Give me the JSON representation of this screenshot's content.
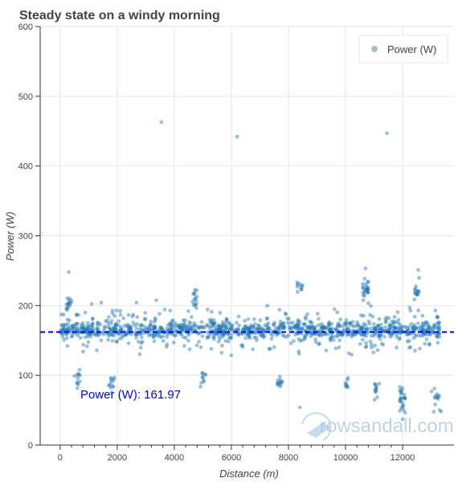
{
  "chart_data": {
    "type": "scatter",
    "title": "Steady state on a windy morning",
    "xlabel": "Distance (m)",
    "ylabel": "Power (W)",
    "xlim": [
      -700,
      13800
    ],
    "ylim": [
      0,
      600
    ],
    "x_ticks": [
      0,
      2000,
      4000,
      6000,
      8000,
      10000,
      12000
    ],
    "y_ticks": [
      0,
      100,
      200,
      300,
      400,
      500,
      600
    ],
    "grid": true,
    "legend_placement": "top-right",
    "series": [
      {
        "name": "Power (W)",
        "color": "#1f77b4",
        "clusters": [
          {
            "x": [
              0,
              13300
            ],
            "y": [
              150,
              180
            ],
            "count": 700
          },
          {
            "x": [
              0,
              13300
            ],
            "y": [
              120,
              210
            ],
            "count": 450
          },
          {
            "x": [
              200,
              400
            ],
            "y": [
              185,
              220
            ],
            "count": 15
          },
          {
            "x": [
              500,
              700
            ],
            "y": [
              70,
              120
            ],
            "count": 12
          },
          {
            "x": [
              1700,
              1900
            ],
            "y": [
              70,
              110
            ],
            "count": 12
          },
          {
            "x": [
              4600,
              4800
            ],
            "y": [
              190,
              230
            ],
            "count": 15
          },
          {
            "x": [
              4900,
              5100
            ],
            "y": [
              80,
              115
            ],
            "count": 10
          },
          {
            "x": [
              7600,
              7800
            ],
            "y": [
              80,
              100
            ],
            "count": 12
          },
          {
            "x": [
              8300,
              8500
            ],
            "y": [
              210,
              240
            ],
            "count": 10
          },
          {
            "x": [
              10000,
              10100
            ],
            "y": [
              70,
              100
            ],
            "count": 8
          },
          {
            "x": [
              10600,
              10800
            ],
            "y": [
              200,
              250
            ],
            "count": 25
          },
          {
            "x": [
              11000,
              11200
            ],
            "y": [
              60,
              100
            ],
            "count": 12
          },
          {
            "x": [
              11900,
              12100
            ],
            "y": [
              30,
              100
            ],
            "count": 25
          },
          {
            "x": [
              12400,
              12600
            ],
            "y": [
              200,
              250
            ],
            "count": 15
          },
          {
            "x": [
              13000,
              13300
            ],
            "y": [
              40,
              90
            ],
            "count": 12
          }
        ],
        "points": [
          [
            3550,
            463
          ],
          [
            6200,
            442
          ],
          [
            11450,
            447
          ],
          [
            300,
            248
          ],
          [
            10700,
            253
          ],
          [
            12550,
            251
          ],
          [
            8400,
            54
          ],
          [
            13300,
            50
          ],
          [
            13350,
            48
          ],
          [
            12000,
            37
          ]
        ]
      }
    ],
    "mean_line": {
      "value": 161.97,
      "color": "#0000ff",
      "label": "Power (W): 161.97"
    }
  },
  "watermark": {
    "text": "rowsandall.com",
    "color": "#a9c6dc"
  }
}
